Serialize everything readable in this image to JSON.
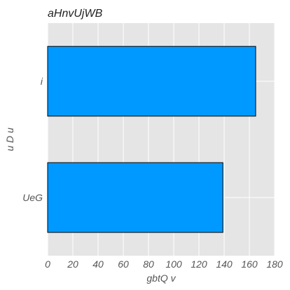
{
  "chart_data": {
    "type": "bar",
    "orientation": "horizontal",
    "title": "aHnvUjWB",
    "xlabel": "gbtQ v",
    "ylabel": "u D u",
    "categories": [
      "i",
      "UeG"
    ],
    "values": [
      165,
      139
    ],
    "xlim": [
      0,
      180
    ],
    "xticks": [
      0,
      20,
      40,
      60,
      80,
      100,
      120,
      140,
      160,
      180
    ],
    "grid": true,
    "legend": "none",
    "bar_color": "#0099ff",
    "bar_edge_color": "#000000",
    "background_color": "#e5e5e5",
    "grid_color": "#ffffff"
  }
}
